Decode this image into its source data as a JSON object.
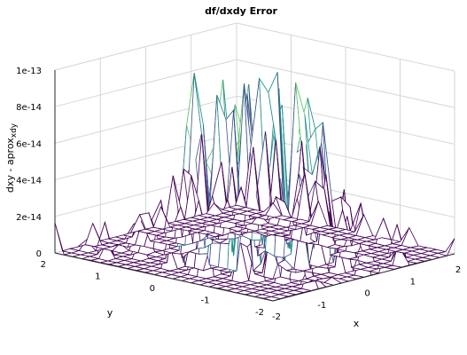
{
  "chart_data": {
    "type": "surface",
    "title": "df/dxdy Error",
    "xlabel": "x",
    "ylabel": "y",
    "zlabel_main": "dxy - aprox",
    "zlabel_sub": "xdy",
    "xlim": [
      -2,
      2
    ],
    "ylim": [
      -2,
      2
    ],
    "zlim": [
      0,
      1e-13
    ],
    "x_ticks": [
      "-2",
      "-1",
      "0",
      "1",
      "2"
    ],
    "y_ticks": [
      "-2",
      "-1",
      "0",
      "1",
      "2"
    ],
    "z_ticks": [
      "0",
      "2e-14",
      "4e-14",
      "6e-14",
      "8e-14",
      "1e-13"
    ],
    "grid": true,
    "colormap": "viridis",
    "colors": [
      "#440154",
      "#3b528b",
      "#21918c",
      "#5ec962",
      "#fde725"
    ]
  }
}
